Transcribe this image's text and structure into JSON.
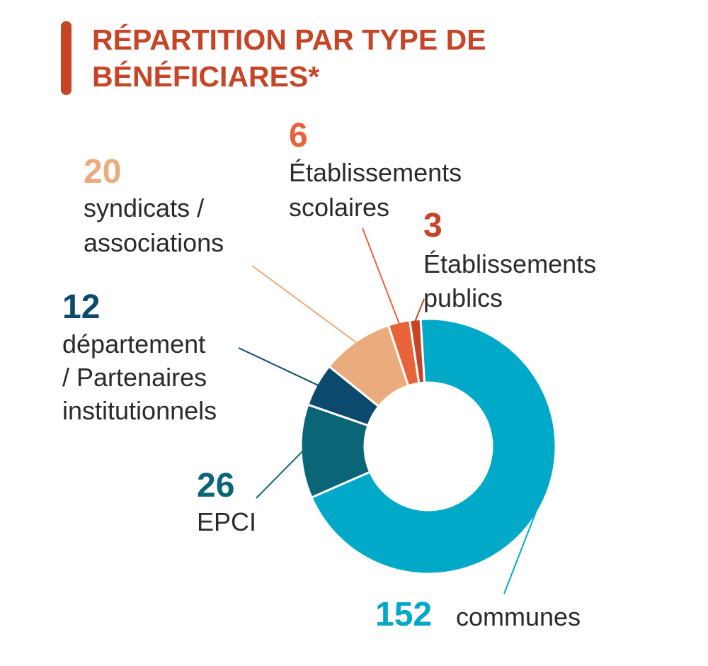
{
  "title_lines": [
    "RÉPARTITION PAR TYPE DE",
    "BÉNÉFICIARES*"
  ],
  "chart_data": {
    "type": "pie",
    "donut": true,
    "title": "RÉPARTITION PAR TYPE DE BÉNÉFICIARES*",
    "categories": [
      "communes",
      "EPCI",
      "département / Partenaires institutionnels",
      "syndicats / associations",
      "Établissements scolaires",
      "Établissements publics"
    ],
    "values": [
      152,
      26,
      12,
      20,
      6,
      3
    ],
    "colors": [
      "#00a9c8",
      "#0a6577",
      "#0b4a6c",
      "#eaac7c",
      "#e8633a",
      "#c64527"
    ],
    "slices": [
      {
        "value": "152",
        "label_lines": [
          "communes"
        ],
        "color": "#00a9c8"
      },
      {
        "value": "26",
        "label_lines": [
          "EPCI"
        ],
        "color": "#0a6577"
      },
      {
        "value": "12",
        "label_lines": [
          "département",
          "/ Partenaires",
          "institutionnels"
        ],
        "color": "#0b4a6c"
      },
      {
        "value": "20",
        "label_lines": [
          "syndicats /",
          "associations"
        ],
        "color": "#eaac7c"
      },
      {
        "value": "6",
        "label_lines": [
          "Établissements",
          "scolaires"
        ],
        "color": "#e8633a"
      },
      {
        "value": "3",
        "label_lines": [
          "Établissements",
          "publics"
        ],
        "color": "#c64527"
      }
    ]
  }
}
